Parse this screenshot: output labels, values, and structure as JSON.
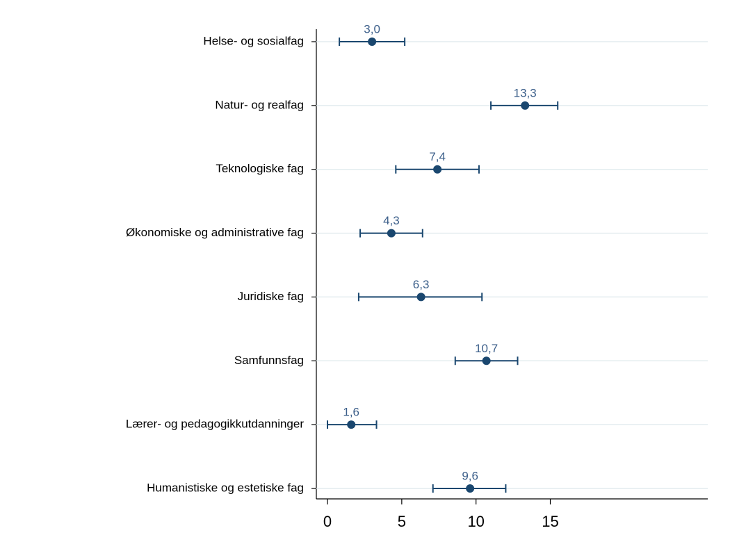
{
  "chart_data": {
    "type": "dot",
    "categories": [
      "Helse- og sosialfag",
      "Natur- og realfag",
      "Teknologiske fag",
      "Økonomiske og administrative fag",
      "Juridiske fag",
      "Samfunnsfag",
      "Lærer- og pedagogikkutdanninger",
      "Humanistiske og estetiske fag"
    ],
    "values": [
      3.0,
      13.3,
      7.4,
      4.3,
      6.3,
      10.7,
      1.6,
      9.6
    ],
    "value_labels": [
      "3,0",
      "13,3",
      "7,4",
      "4,3",
      "6,3",
      "10,7",
      "1,6",
      "9,6"
    ],
    "lower": [
      0.8,
      11.0,
      4.6,
      2.2,
      2.1,
      8.6,
      0.0,
      7.1
    ],
    "upper": [
      5.2,
      15.5,
      10.2,
      6.4,
      10.4,
      12.8,
      3.3,
      12.0
    ],
    "color": "#1a476f",
    "xlim": [
      -0.75,
      25.6
    ],
    "xticks": [
      0,
      5,
      10,
      15
    ],
    "grid": true
  }
}
